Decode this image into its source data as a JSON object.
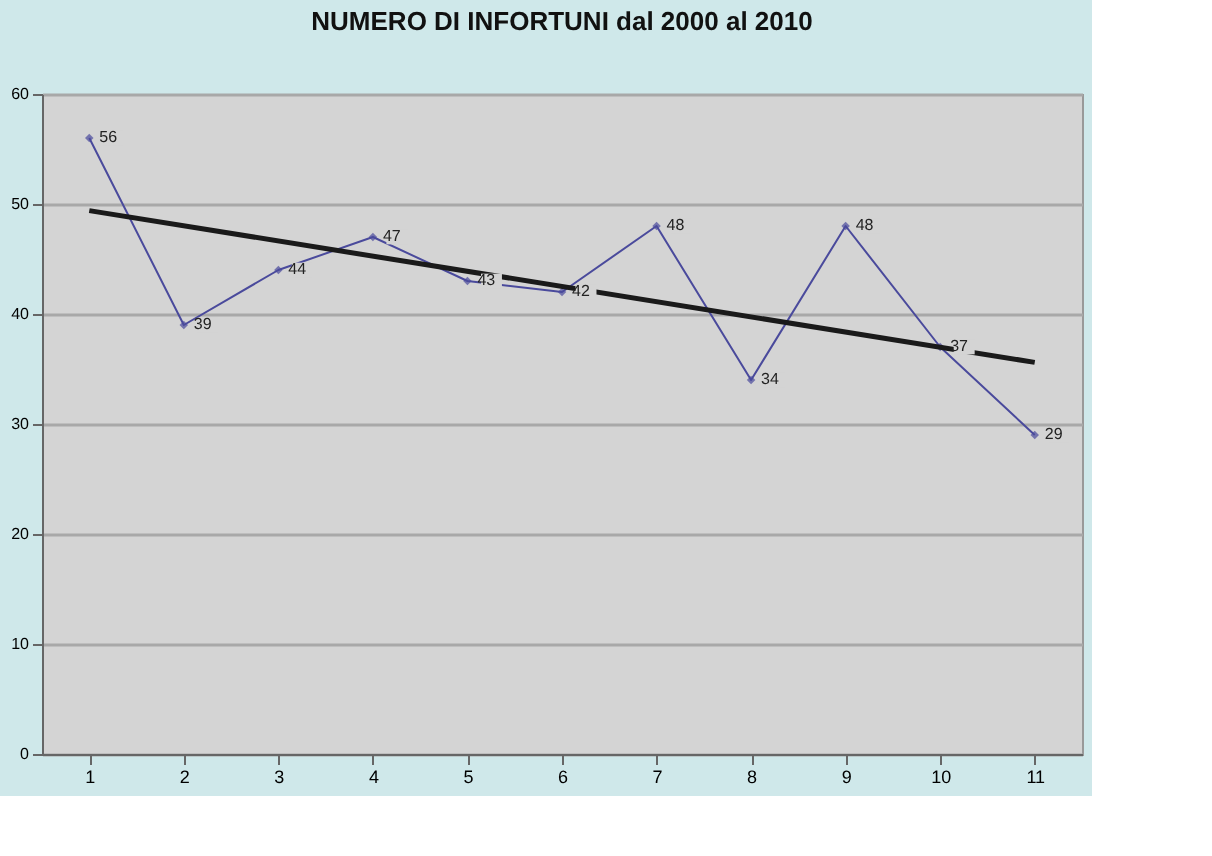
{
  "chart_data": {
    "type": "line",
    "title": "NUMERO DI INFORTUNI dal 2000 al 2010",
    "categories": [
      "1",
      "2",
      "3",
      "4",
      "5",
      "6",
      "7",
      "8",
      "9",
      "10",
      "11"
    ],
    "series": [
      {
        "color": "#4a4a9c",
        "values": [
          56,
          39,
          44,
          47,
          43,
          42,
          48,
          34,
          48,
          37,
          29
        ],
        "value_labels": [
          "56",
          "39",
          "44",
          "47",
          "43",
          "42",
          "48",
          "34",
          "48",
          "37",
          "29"
        ],
        "marker": "diamond"
      },
      {
        "type": "line",
        "color": "#1a1a1a",
        "x": [
          "1",
          "11"
        ],
        "values": [
          49.4,
          35.6
        ],
        "marker": "none"
      }
    ],
    "ylim": [
      0,
      60
    ],
    "yticks": [
      0,
      10,
      20,
      30,
      40,
      50,
      60
    ],
    "grid": "y"
  }
}
